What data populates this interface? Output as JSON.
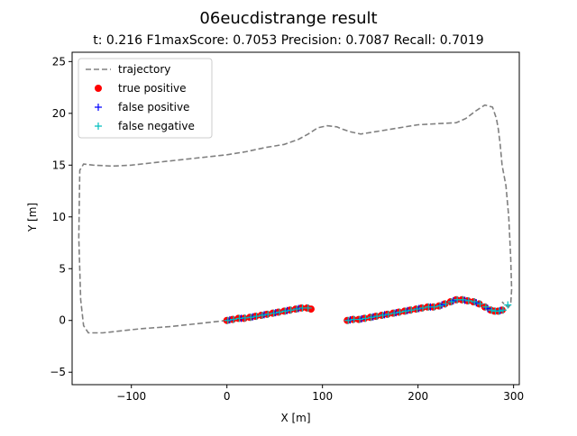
{
  "chart_data": {
    "type": "scatter",
    "title": "06eucdistrange result",
    "subtitle": "t:  0.216  F1maxScore:  0.7053  Precision:  0.7087  Recall:  0.7019",
    "xlabel": "X [m]",
    "ylabel": "Y [m]",
    "xlim": [
      -162,
      306
    ],
    "ylim": [
      -6.2,
      25.9
    ],
    "xticks": [
      -100,
      0,
      100,
      200,
      300
    ],
    "xtick_labels": [
      "−100",
      "0",
      "100",
      "200",
      "300"
    ],
    "yticks": [
      -5,
      0,
      5,
      10,
      15,
      20,
      25
    ],
    "ytick_labels": [
      "−5",
      "0",
      "5",
      "10",
      "15",
      "20",
      "25"
    ],
    "grid": false,
    "legend_position": "top-left",
    "series": [
      {
        "name": "trajectory",
        "kind": "line",
        "color": "#808080",
        "line_style": "dashed",
        "x": [
          0,
          -30,
          -60,
          -90,
          -110,
          -130,
          -145,
          -150,
          -153,
          -155,
          -154,
          -150,
          -140,
          -120,
          -100,
          -80,
          -60,
          -40,
          -20,
          0,
          20,
          40,
          60,
          75,
          85,
          95,
          105,
          115,
          120,
          130,
          140,
          160,
          180,
          200,
          220,
          240,
          250,
          260,
          270,
          278,
          282,
          284,
          286,
          288,
          292,
          295,
          297,
          298,
          297,
          295,
          292,
          290,
          288
        ],
        "y": [
          0,
          -0.3,
          -0.6,
          -0.8,
          -1.0,
          -1.2,
          -1.2,
          -0.5,
          2.0,
          8.0,
          14.5,
          15.1,
          15.0,
          14.9,
          15.0,
          15.2,
          15.4,
          15.6,
          15.8,
          16.0,
          16.3,
          16.7,
          17.0,
          17.5,
          18.0,
          18.6,
          18.8,
          18.7,
          18.5,
          18.2,
          18.0,
          18.3,
          18.6,
          18.9,
          19.0,
          19.1,
          19.5,
          20.2,
          20.8,
          20.6,
          19.5,
          18.5,
          17.0,
          15.0,
          13.0,
          10.0,
          6.0,
          3.0,
          1.6,
          1.3,
          1.4,
          1.6,
          1.8
        ]
      },
      {
        "name": "true positive",
        "kind": "markers",
        "marker": "circle",
        "color": "#ff0000",
        "x": [
          0,
          6,
          12,
          18,
          24,
          30,
          36,
          42,
          48,
          54,
          60,
          66,
          72,
          78,
          84,
          88,
          126,
          132,
          138,
          144,
          150,
          156,
          162,
          168,
          174,
          180,
          186,
          192,
          198,
          204,
          210,
          216,
          222,
          228,
          234,
          240,
          246,
          252,
          258,
          264,
          270,
          276,
          280,
          284,
          288
        ],
        "y": [
          0,
          0.1,
          0.2,
          0.2,
          0.3,
          0.4,
          0.5,
          0.6,
          0.7,
          0.8,
          0.9,
          1.0,
          1.1,
          1.2,
          1.2,
          1.1,
          0,
          0.1,
          0.1,
          0.2,
          0.3,
          0.4,
          0.5,
          0.6,
          0.7,
          0.8,
          0.9,
          1.0,
          1.1,
          1.2,
          1.3,
          1.3,
          1.4,
          1.6,
          1.8,
          2.0,
          2.0,
          1.9,
          1.8,
          1.6,
          1.3,
          1.0,
          0.9,
          0.9,
          1.0
        ]
      },
      {
        "name": "false positive",
        "kind": "markers",
        "marker": "plus",
        "color": "#0000ff",
        "x": [
          3,
          15,
          27,
          39,
          51,
          63,
          75,
          129,
          141,
          153,
          165,
          177,
          189,
          201,
          213,
          225,
          237,
          249,
          261,
          273,
          286
        ],
        "y": [
          0.05,
          0.2,
          0.35,
          0.55,
          0.75,
          0.95,
          1.15,
          0.05,
          0.15,
          0.35,
          0.55,
          0.75,
          0.95,
          1.15,
          1.3,
          1.5,
          1.9,
          1.95,
          1.7,
          1.15,
          0.95
        ]
      },
      {
        "name": "false negative",
        "kind": "markers",
        "marker": "plus",
        "color": "#00bfbf",
        "x": [
          1,
          7,
          13,
          19,
          25,
          31,
          37,
          43,
          49,
          55,
          61,
          67,
          73,
          79,
          85,
          127,
          133,
          139,
          145,
          151,
          157,
          163,
          169,
          175,
          181,
          187,
          193,
          199,
          205,
          211,
          217,
          223,
          229,
          235,
          241,
          247,
          253,
          259,
          265,
          271,
          277,
          281,
          285,
          289,
          294
        ],
        "y": [
          0,
          0.1,
          0.2,
          0.25,
          0.3,
          0.4,
          0.5,
          0.6,
          0.7,
          0.8,
          0.9,
          1.0,
          1.1,
          1.2,
          1.2,
          0,
          0.1,
          0.1,
          0.2,
          0.3,
          0.4,
          0.5,
          0.6,
          0.7,
          0.8,
          0.9,
          1.0,
          1.1,
          1.2,
          1.3,
          1.3,
          1.4,
          1.6,
          1.8,
          2.0,
          2.0,
          1.9,
          1.8,
          1.6,
          1.3,
          1.0,
          0.9,
          0.9,
          1.0,
          1.5
        ]
      }
    ]
  }
}
